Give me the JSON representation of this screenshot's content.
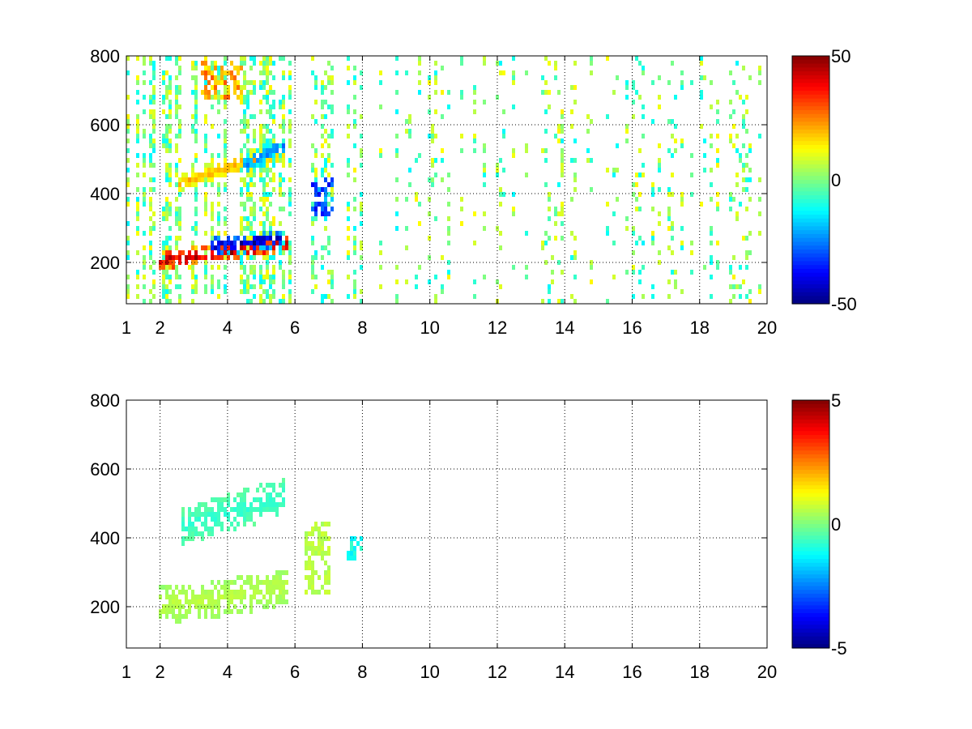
{
  "chart_data": [
    {
      "type": "heatmap",
      "title": "",
      "xlabel": "",
      "ylabel": "",
      "xlim": [
        1,
        20
      ],
      "ylim": [
        80,
        800
      ],
      "xticks": [
        1,
        2,
        4,
        6,
        8,
        10,
        12,
        14,
        16,
        18,
        20
      ],
      "yticks": [
        200,
        400,
        600,
        800
      ],
      "grid": true,
      "colormap": "jet",
      "colorbar": {
        "min": -50,
        "max": 50,
        "ticks": [
          50,
          0,
          -50
        ]
      },
      "features": [
        {
          "kind": "ridge",
          "x": [
            2.0,
            3.0,
            4.0,
            5.0,
            5.8
          ],
          "y": [
            205,
            215,
            228,
            240,
            255
          ],
          "value": 45
        },
        {
          "kind": "ridge",
          "x": [
            3.5,
            4.5,
            5.6
          ],
          "y": [
            245,
            255,
            270
          ],
          "value": -45
        },
        {
          "kind": "ridge",
          "x": [
            2.5,
            3.5,
            4.5,
            5.7
          ],
          "y": [
            430,
            460,
            490,
            520
          ],
          "value": 20
        },
        {
          "kind": "ridge",
          "x": [
            4.5,
            5.7
          ],
          "y": [
            480,
            540
          ],
          "value": -25
        },
        {
          "kind": "blob",
          "x": [
            6.5,
            7.2
          ],
          "y": [
            330,
            440
          ],
          "value": -40
        },
        {
          "kind": "blob",
          "x": [
            3.2,
            4.5
          ],
          "y": [
            680,
            780
          ],
          "value": 30
        }
      ]
    },
    {
      "type": "heatmap",
      "title": "",
      "xlabel": "",
      "ylabel": "",
      "xlim": [
        1,
        20
      ],
      "ylim": [
        80,
        800
      ],
      "xticks": [
        1,
        2,
        4,
        6,
        8,
        10,
        12,
        14,
        16,
        18,
        20
      ],
      "yticks": [
        200,
        400,
        600,
        800
      ],
      "grid": true,
      "colormap": "jet",
      "colorbar": {
        "min": -5,
        "max": 5,
        "ticks": [
          5,
          0,
          -5
        ]
      },
      "features": [
        {
          "kind": "band",
          "x": [
            2.0,
            3.0,
            4.0,
            5.0,
            5.8
          ],
          "y": [
            205,
            215,
            230,
            245,
            260
          ],
          "value": 0.6
        },
        {
          "kind": "band",
          "x": [
            2.6,
            3.5,
            4.5,
            5.7
          ],
          "y": [
            430,
            455,
            485,
            520
          ],
          "value": -0.8
        },
        {
          "kind": "blob",
          "x": [
            6.3,
            7.1
          ],
          "y": [
            240,
            450
          ],
          "value": 0.8
        },
        {
          "kind": "blob",
          "x": [
            7.6,
            8.0
          ],
          "y": [
            330,
            400
          ],
          "value": -1.5
        }
      ]
    }
  ]
}
